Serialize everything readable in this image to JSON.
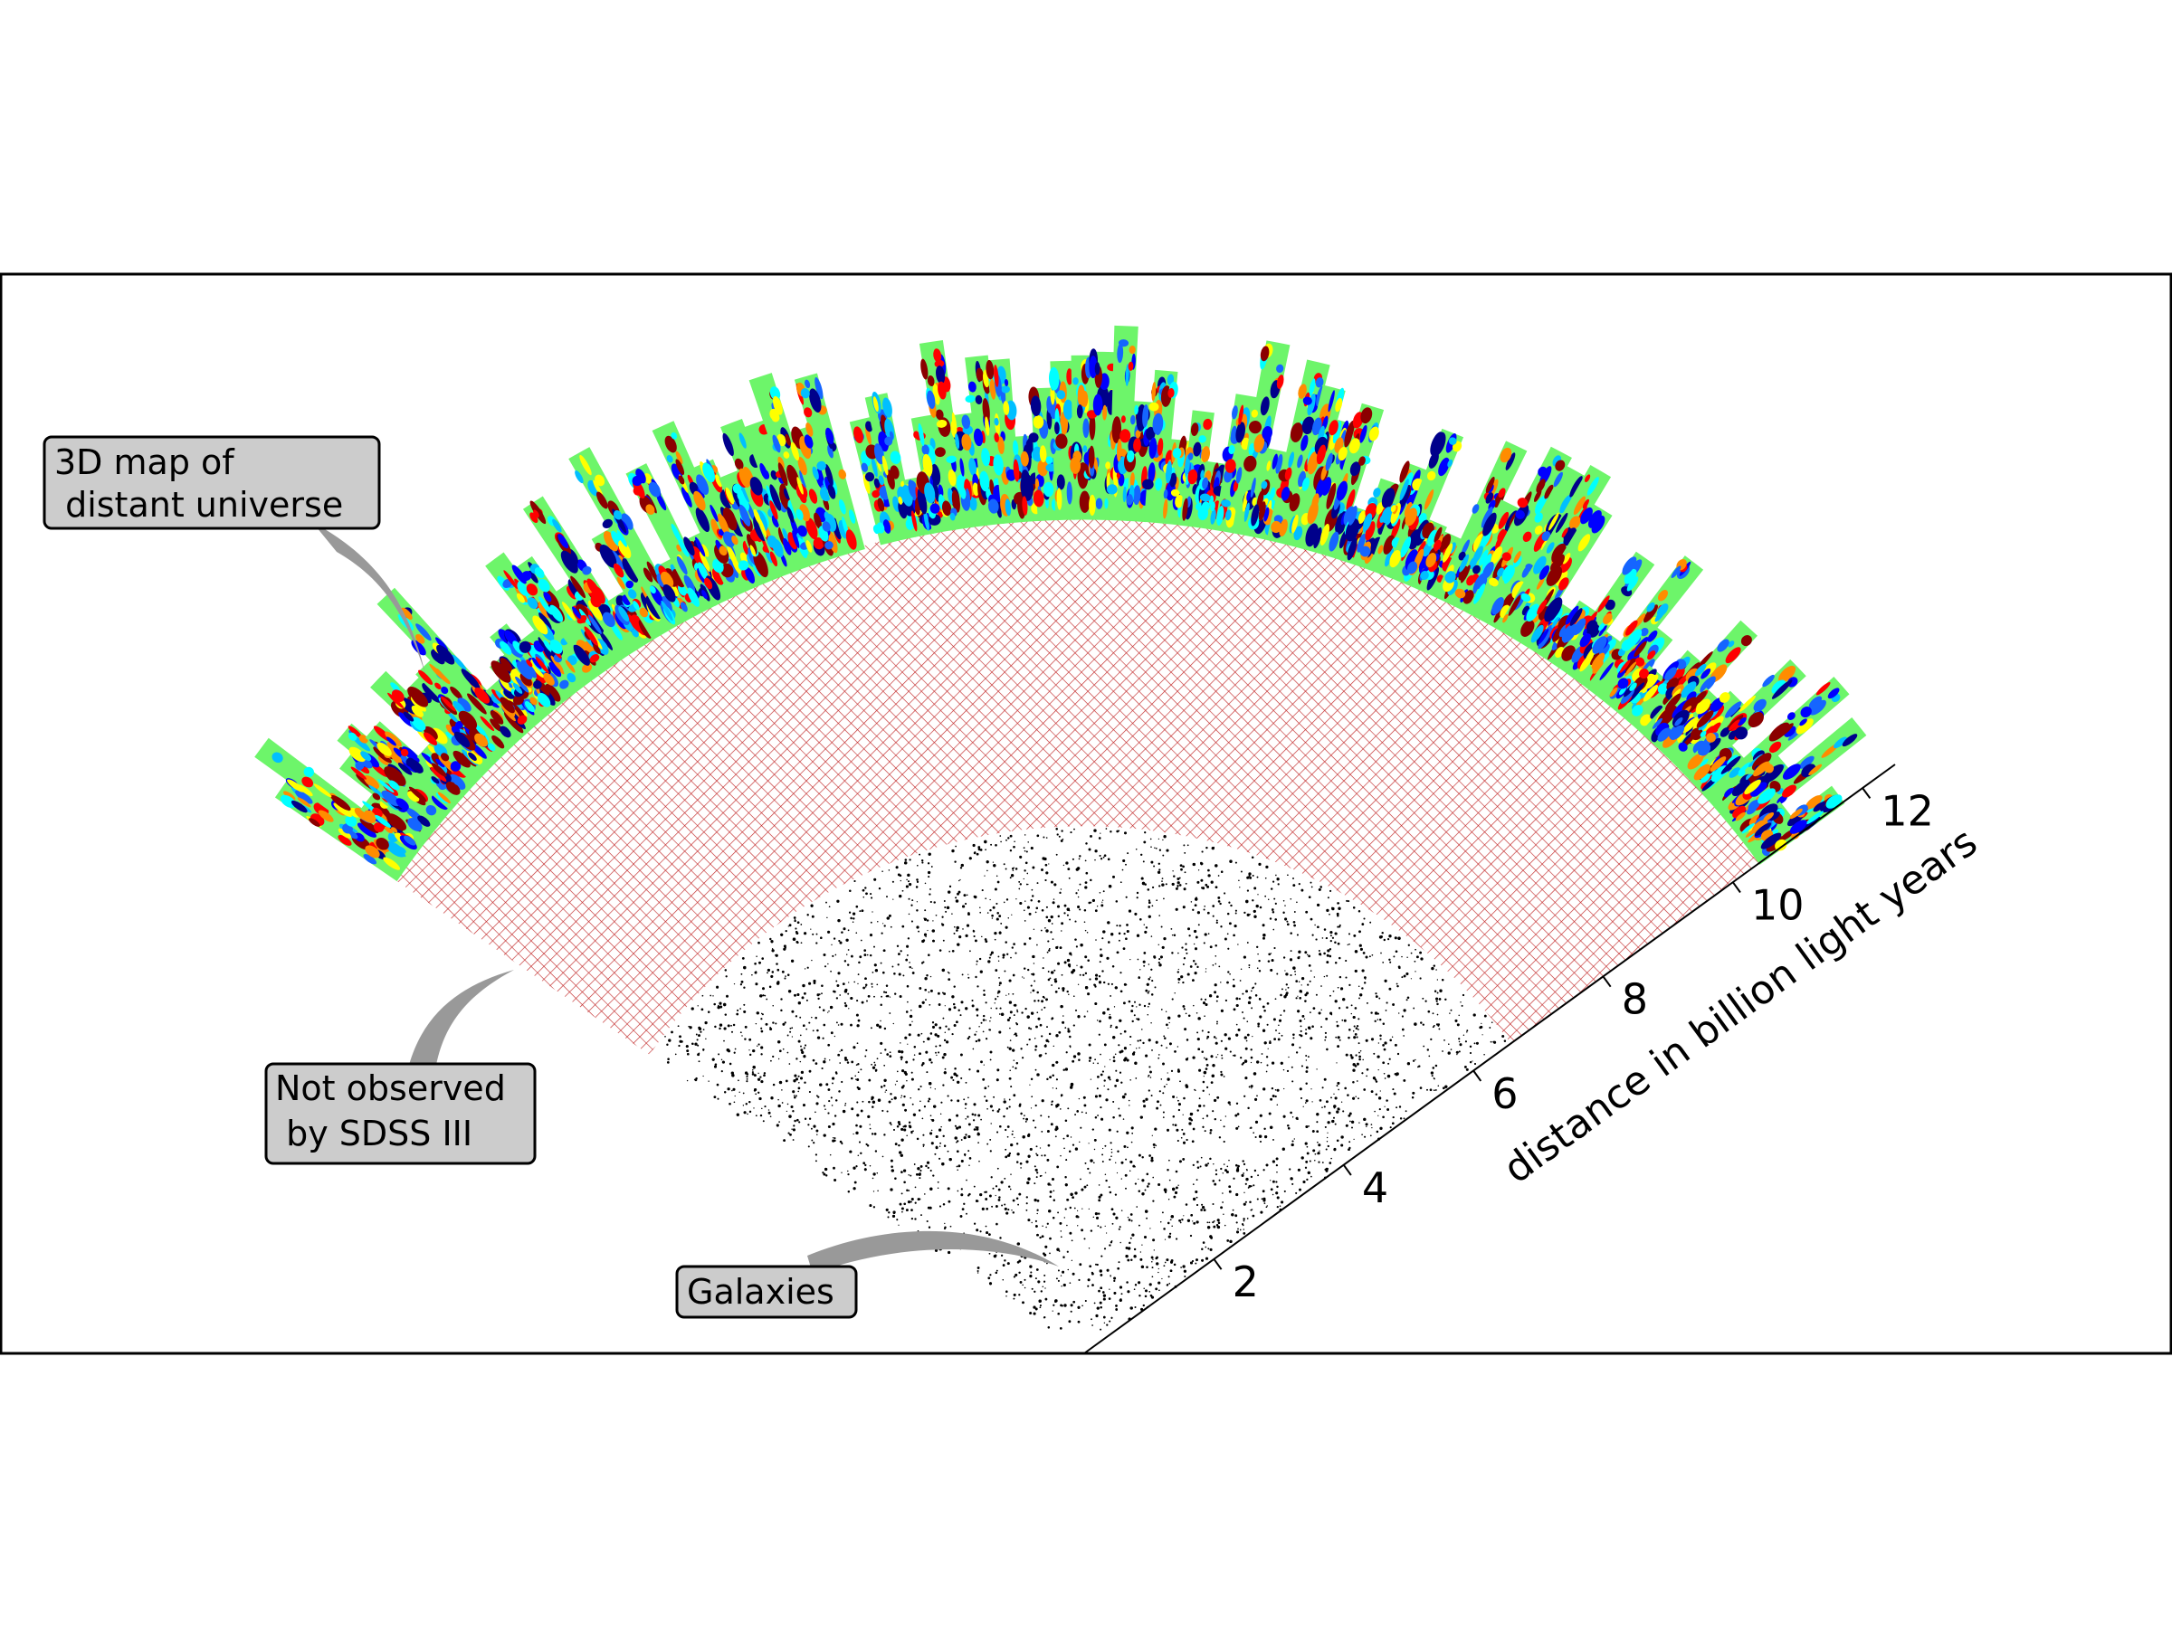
{
  "callouts": {
    "map_3d": {
      "lines": [
        "3D map of",
        " distant universe"
      ]
    },
    "not_observed": {
      "lines": [
        "Not observed",
        " by SDSS III"
      ]
    },
    "galaxies": {
      "lines": [
        "Galaxies"
      ]
    }
  },
  "axis": {
    "label": "distance in billion light years",
    "ticks": [
      "2",
      "4",
      "6",
      "8",
      "10",
      "12"
    ],
    "tick_values": [
      2,
      4,
      6,
      8,
      10,
      12
    ],
    "max": 12.5
  },
  "regions": {
    "galaxies_extent": [
      0,
      6.6
    ],
    "not_observed_extent": [
      6.6,
      10.4
    ],
    "map_extent": [
      10.4,
      12.9
    ]
  },
  "colors": {
    "hatch": "#c22a2a",
    "map_base": "#6df56a",
    "map_palette": [
      "#00008b",
      "#0000ff",
      "#1565ff",
      "#00bfff",
      "#00ffff",
      "#ffff00",
      "#ff8c00",
      "#ff0000",
      "#8b0000"
    ],
    "galaxy_dots": "#000000",
    "callout_fill": "#cccccc",
    "callout_pointer": "#999999",
    "frame": "#000000"
  }
}
